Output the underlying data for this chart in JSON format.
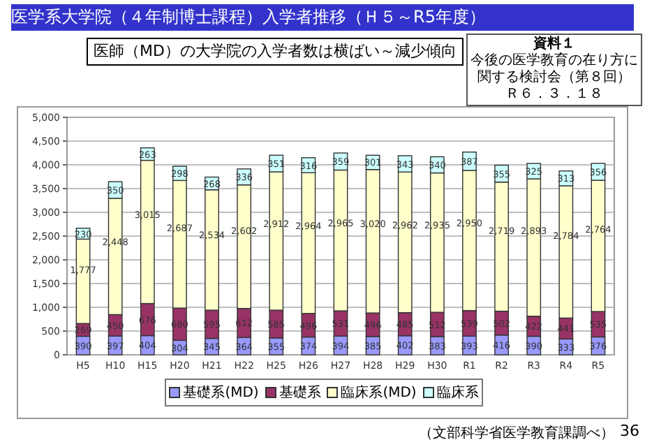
{
  "chart_data": {
    "type": "bar",
    "stacked": true,
    "title": "医学系大学院（４年制博士課程）入学者推移（Ｈ５～R5年度）",
    "subtitle": "医師（MD）の大学院の入学者数は横ばい～減少傾向",
    "categories": [
      "H5",
      "H10",
      "H15",
      "H20",
      "H21",
      "H22",
      "H25",
      "H26",
      "H27",
      "H28",
      "H29",
      "H30",
      "R1",
      "R2",
      "R3",
      "R4",
      "R5"
    ],
    "series": [
      {
        "name": "基礎系(MD)",
        "color": "#9999ff",
        "values": [
          390,
          397,
          404,
          304,
          345,
          364,
          355,
          374,
          394,
          385,
          402,
          383,
          393,
          416,
          390,
          333,
          376
        ],
        "value_labels": [
          "390",
          "397",
          "404",
          "304",
          "345",
          "364",
          "355",
          "374",
          "394",
          "385",
          "402",
          "383",
          "393",
          "416",
          "390",
          "333",
          "376"
        ]
      },
      {
        "name": "基礎系",
        "color": "#993366",
        "values": [
          269,
          450,
          676,
          680,
          595,
          612,
          585,
          496,
          531,
          496,
          485,
          512,
          539,
          502,
          422,
          441,
          535
        ],
        "value_labels": [
          "269",
          "450",
          "676",
          "680",
          "595",
          "612",
          "585",
          "496",
          "531",
          "496",
          "485",
          "512",
          "539",
          "502",
          "422",
          "441",
          "535"
        ]
      },
      {
        "name": "臨床系(MD)",
        "color": "#ffffcc",
        "values": [
          1777,
          2448,
          3015,
          2687,
          2534,
          2602,
          2912,
          2964,
          2965,
          3020,
          2962,
          2935,
          2950,
          2719,
          2893,
          2784,
          2764
        ],
        "value_labels": [
          "1,777",
          "2,448",
          "3,015",
          "2,687",
          "2,534",
          "2,602",
          "2,912",
          "2,964",
          "2,965",
          "3,020",
          "2,962",
          "2,935",
          "2,950",
          "2,719",
          "2,893",
          "2,784",
          "2,764"
        ]
      },
      {
        "name": "臨床系",
        "color": "#ccffff",
        "values": [
          230,
          350,
          263,
          298,
          268,
          336,
          351,
          316,
          359,
          301,
          343,
          340,
          387,
          355,
          325,
          313,
          356
        ],
        "value_labels": [
          "230",
          "350",
          "263",
          "298",
          "268",
          "336",
          "351",
          "316",
          "359",
          "301",
          "343",
          "340",
          "387",
          "355",
          "325",
          "313",
          "356"
        ]
      }
    ],
    "ylim": [
      0,
      5000
    ],
    "yticks": [
      {
        "value": 0,
        "label": "0"
      },
      {
        "value": 500,
        "label": "500"
      },
      {
        "value": 1000,
        "label": "1,000"
      },
      {
        "value": 1500,
        "label": "1,500"
      },
      {
        "value": 2000,
        "label": "2,000"
      },
      {
        "value": 2500,
        "label": "2,500"
      },
      {
        "value": 3000,
        "label": "3,000"
      },
      {
        "value": 3500,
        "label": "3,500"
      },
      {
        "value": 4000,
        "label": "4,000"
      },
      {
        "value": 4500,
        "label": "4,500"
      },
      {
        "value": 5000,
        "label": "5,000"
      }
    ],
    "grid": "y",
    "legend": "bottom",
    "annotations": [
      "資料１",
      "今後の医学教育の在り方に関する検討会（第８回）",
      "Ｒ６．３．１８",
      "（文部科学省医学教育課調べ）",
      "36"
    ]
  }
}
